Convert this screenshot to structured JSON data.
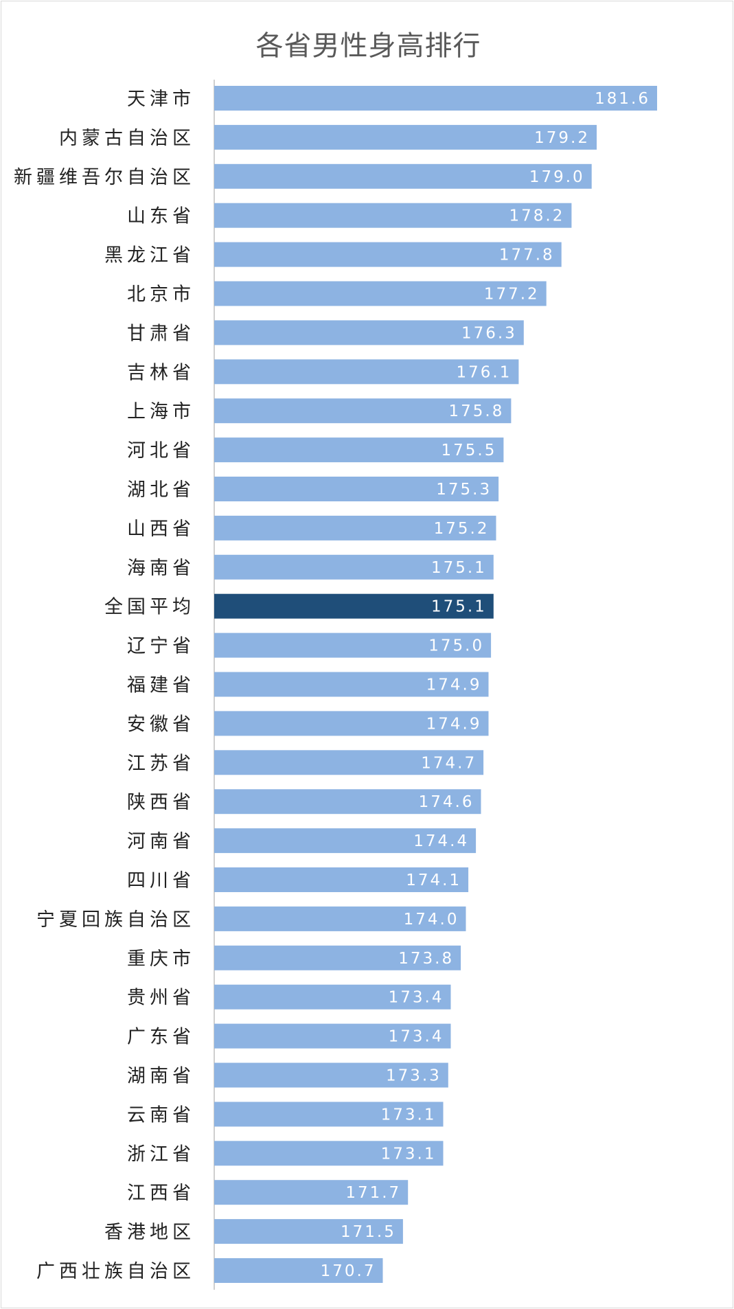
{
  "chart_data": {
    "type": "bar",
    "orientation": "horizontal",
    "title": "各省男性身高排行",
    "xlabel": "",
    "ylabel": "",
    "grid": false,
    "legend": "none",
    "data_labels": true,
    "colors": {
      "bar": "#8db3e2",
      "highlight": "#1f4e79",
      "axis": "#bfbfbf",
      "title": "#595959"
    },
    "highlight_category": "全国平均",
    "categories": [
      "天津市",
      "内蒙古自治区",
      "新疆维吾尔自治区",
      "山东省",
      "黑龙江省",
      "北京市",
      "甘肃省",
      "吉林省",
      "上海市",
      "河北省",
      "湖北省",
      "山西省",
      "海南省",
      "全国平均",
      "辽宁省",
      "福建省",
      "安徽省",
      "江苏省",
      "陕西省",
      "河南省",
      "四川省",
      "宁夏回族自治区",
      "重庆市",
      "贵州省",
      "广东省",
      "湖南省",
      "云南省",
      "浙江省",
      "江西省",
      "香港地区",
      "广西壮族自治区"
    ],
    "values": [
      181.6,
      179.2,
      179.0,
      178.2,
      177.8,
      177.2,
      176.3,
      176.1,
      175.8,
      175.5,
      175.3,
      175.2,
      175.1,
      175.1,
      175.0,
      174.9,
      174.9,
      174.7,
      174.6,
      174.4,
      174.1,
      174.0,
      173.8,
      173.4,
      173.4,
      173.3,
      173.1,
      173.1,
      171.7,
      171.5,
      170.7
    ],
    "value_labels": [
      "181.6",
      "179.2",
      "179.0",
      "178.2",
      "177.8",
      "177.2",
      "176.3",
      "176.1",
      "175.8",
      "175.5",
      "175.3",
      "175.2",
      "175.1",
      "175.1",
      "175.0",
      "174.9",
      "174.9",
      "174.7",
      "174.6",
      "174.4",
      "174.1",
      "174.0",
      "173.8",
      "173.4",
      "173.4",
      "173.3",
      "173.1",
      "173.1",
      "171.7",
      "171.5",
      "170.7"
    ],
    "xlim": [
      164.0,
      181.6
    ]
  }
}
